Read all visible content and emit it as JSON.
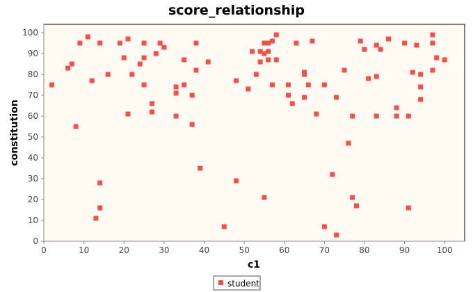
{
  "chart_data": {
    "type": "scatter",
    "title": "score_relationship",
    "xlabel": "c1",
    "ylabel": "constitution",
    "xlim": [
      0,
      105
    ],
    "ylim": [
      0,
      104
    ],
    "xticks": [
      0,
      10,
      20,
      30,
      40,
      50,
      60,
      70,
      80,
      90,
      100
    ],
    "yticks": [
      0,
      10,
      20,
      30,
      40,
      50,
      60,
      70,
      80,
      90,
      100
    ],
    "grid": false,
    "legend_position": "bottom",
    "colors": {
      "plot_background": "#fffbf3",
      "marker": "#f05050",
      "axis": "#888888",
      "frame": "#000000"
    },
    "series": [
      {
        "name": "student",
        "marker": "square",
        "points": [
          [
            2,
            75
          ],
          [
            6,
            83
          ],
          [
            7,
            85
          ],
          [
            8,
            55
          ],
          [
            9,
            95
          ],
          [
            11,
            98
          ],
          [
            12,
            77
          ],
          [
            13,
            11
          ],
          [
            14,
            95
          ],
          [
            14,
            28
          ],
          [
            14,
            16
          ],
          [
            16,
            80
          ],
          [
            19,
            95
          ],
          [
            20,
            88
          ],
          [
            21,
            97
          ],
          [
            21,
            61
          ],
          [
            22,
            80
          ],
          [
            24,
            85
          ],
          [
            25,
            95
          ],
          [
            25,
            88
          ],
          [
            25,
            75
          ],
          [
            27,
            66
          ],
          [
            27,
            62
          ],
          [
            28,
            90
          ],
          [
            29,
            95
          ],
          [
            30,
            93
          ],
          [
            33,
            74
          ],
          [
            33,
            71
          ],
          [
            33,
            60
          ],
          [
            35,
            87
          ],
          [
            35,
            75
          ],
          [
            37,
            70
          ],
          [
            37,
            56
          ],
          [
            38,
            95
          ],
          [
            38,
            82
          ],
          [
            39,
            35
          ],
          [
            41,
            86
          ],
          [
            45,
            7
          ],
          [
            48,
            77
          ],
          [
            48,
            29
          ],
          [
            51,
            73
          ],
          [
            52,
            91
          ],
          [
            53,
            80
          ],
          [
            54,
            91
          ],
          [
            54,
            86
          ],
          [
            55,
            95
          ],
          [
            55,
            90
          ],
          [
            55,
            21
          ],
          [
            56,
            95
          ],
          [
            56,
            91
          ],
          [
            56,
            87
          ],
          [
            57,
            96
          ],
          [
            57,
            75
          ],
          [
            58,
            99
          ],
          [
            58,
            87
          ],
          [
            61,
            75
          ],
          [
            61,
            70
          ],
          [
            62,
            66
          ],
          [
            63,
            95
          ],
          [
            65,
            81
          ],
          [
            65,
            80
          ],
          [
            65,
            69
          ],
          [
            66,
            75
          ],
          [
            67,
            96
          ],
          [
            68,
            61
          ],
          [
            70,
            75
          ],
          [
            70,
            7
          ],
          [
            72,
            32
          ],
          [
            73,
            69
          ],
          [
            73,
            3
          ],
          [
            75,
            82
          ],
          [
            76,
            47
          ],
          [
            77,
            60
          ],
          [
            77,
            21
          ],
          [
            78,
            17
          ],
          [
            79,
            96
          ],
          [
            80,
            92
          ],
          [
            81,
            78
          ],
          [
            83,
            94
          ],
          [
            83,
            79
          ],
          [
            83,
            60
          ],
          [
            84,
            92
          ],
          [
            86,
            97
          ],
          [
            88,
            64
          ],
          [
            88,
            60
          ],
          [
            90,
            95
          ],
          [
            91,
            60
          ],
          [
            91,
            16
          ],
          [
            92,
            81
          ],
          [
            93,
            94
          ],
          [
            94,
            80
          ],
          [
            94,
            74
          ],
          [
            94,
            68
          ],
          [
            97,
            99
          ],
          [
            97,
            95
          ],
          [
            97,
            82
          ],
          [
            98,
            88
          ],
          [
            100,
            87
          ]
        ]
      }
    ]
  }
}
